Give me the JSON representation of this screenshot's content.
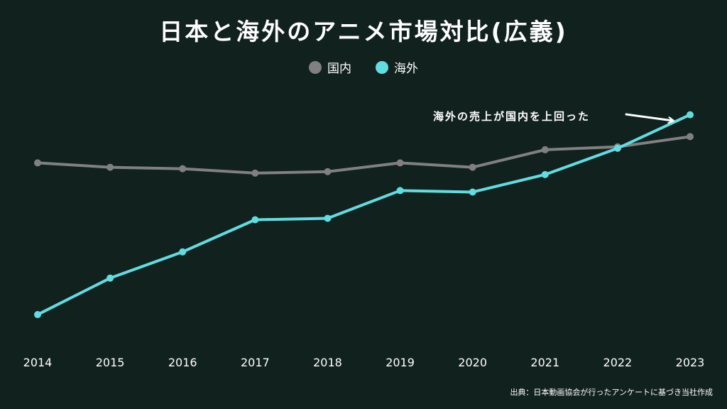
{
  "chart_data": {
    "type": "line",
    "title": "日本と海外のアニメ市場対比(広義)",
    "x": [
      "2014",
      "2015",
      "2016",
      "2017",
      "2018",
      "2019",
      "2020",
      "2021",
      "2022",
      "2023"
    ],
    "series": [
      {
        "name": "国内",
        "color": "#808080",
        "values": [
          1.37,
          1.34,
          1.33,
          1.3,
          1.31,
          1.37,
          1.34,
          1.46,
          1.48,
          1.55
        ]
      },
      {
        "name": "海外",
        "color": "#5fdde0",
        "values": [
          0.33,
          0.58,
          0.76,
          0.98,
          0.99,
          1.18,
          1.17,
          1.29,
          1.47,
          1.7
        ]
      }
    ],
    "ylim": [
      0.15,
      2.0
    ],
    "grid": false,
    "legend_position": "top-center",
    "annotation": {
      "text": "海外の売上が国内を上回った",
      "target": "2023"
    },
    "source_note": "出典：日本動画協会が行ったアンケートに基づき当社作成"
  }
}
